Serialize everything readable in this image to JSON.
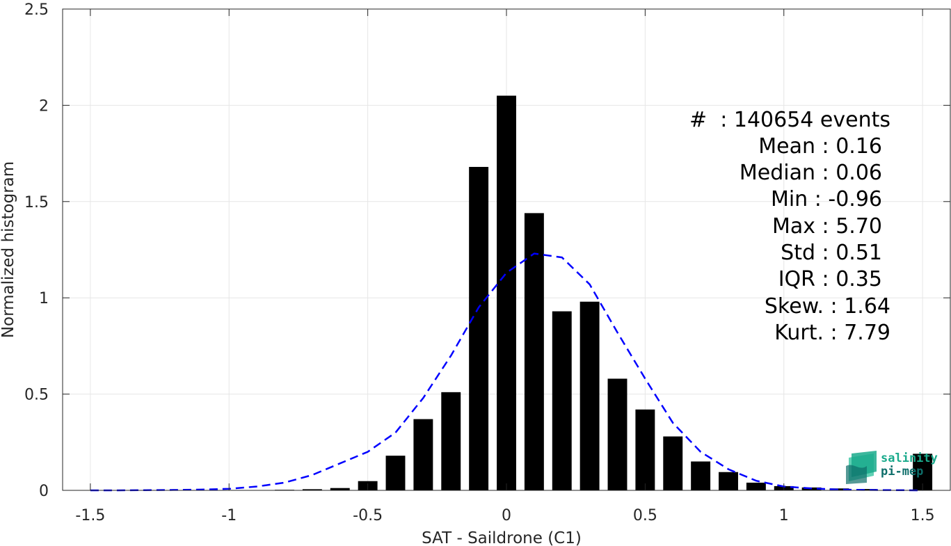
{
  "chart_data": {
    "type": "bar",
    "title": "",
    "xlabel": "SAT - Saildrone (C1)",
    "ylabel": "Normalized histogram",
    "xlim": [
      -1.6,
      1.6
    ],
    "ylim": [
      0,
      2.5
    ],
    "xticks": [
      -1.5,
      -1,
      -0.5,
      0,
      0.5,
      1,
      1.5
    ],
    "xtick_labels": [
      "-1.5",
      "-1",
      "-0.5",
      "0",
      "0.5",
      "1",
      "1.5"
    ],
    "yticks": [
      0,
      0.5,
      1,
      1.5,
      2,
      2.5
    ],
    "ytick_labels": [
      "0",
      "0.5",
      "1",
      "1.5",
      "2",
      "2.5"
    ],
    "grid": true,
    "bar_width": 0.07,
    "bar_color": "#000000",
    "bars": [
      {
        "x": -0.8,
        "value": 0.003
      },
      {
        "x": -0.7,
        "value": 0.006
      },
      {
        "x": -0.6,
        "value": 0.012
      },
      {
        "x": -0.5,
        "value": 0.048
      },
      {
        "x": -0.4,
        "value": 0.18
      },
      {
        "x": -0.3,
        "value": 0.37
      },
      {
        "x": -0.2,
        "value": 0.51
      },
      {
        "x": -0.1,
        "value": 1.68
      },
      {
        "x": 0.0,
        "value": 2.05
      },
      {
        "x": 0.1,
        "value": 1.44
      },
      {
        "x": 0.2,
        "value": 0.93
      },
      {
        "x": 0.3,
        "value": 0.98
      },
      {
        "x": 0.4,
        "value": 0.58
      },
      {
        "x": 0.5,
        "value": 0.42
      },
      {
        "x": 0.6,
        "value": 0.28
      },
      {
        "x": 0.7,
        "value": 0.15
      },
      {
        "x": 0.8,
        "value": 0.095
      },
      {
        "x": 0.9,
        "value": 0.04
      },
      {
        "x": 1.0,
        "value": 0.022
      },
      {
        "x": 1.1,
        "value": 0.015
      },
      {
        "x": 1.2,
        "value": 0.01
      },
      {
        "x": 1.3,
        "value": 0.007
      },
      {
        "x": 1.5,
        "value": 0.19
      }
    ],
    "fit_curve": {
      "color": "#0000ff",
      "style": "dashed",
      "x": [
        -1.5,
        -1.4,
        -1.3,
        -1.2,
        -1.1,
        -1.0,
        -0.9,
        -0.8,
        -0.7,
        -0.6,
        -0.5,
        -0.4,
        -0.3,
        -0.2,
        -0.1,
        0.0,
        0.1,
        0.2,
        0.3,
        0.4,
        0.5,
        0.6,
        0.7,
        0.8,
        0.9,
        1.0,
        1.1,
        1.2,
        1.3,
        1.4,
        1.5
      ],
      "y": [
        0.0,
        0.0,
        0.001,
        0.002,
        0.004,
        0.008,
        0.02,
        0.04,
        0.08,
        0.14,
        0.2,
        0.3,
        0.48,
        0.7,
        0.95,
        1.13,
        1.23,
        1.21,
        1.07,
        0.82,
        0.58,
        0.35,
        0.2,
        0.11,
        0.05,
        0.02,
        0.01,
        0.004,
        0.002,
        0.001,
        0.0
      ]
    }
  },
  "stats": {
    "events": "#  : 140654 events",
    "mean": "Mean : 0.16",
    "median": "Median : 0.06",
    "min": "Min : -0.96",
    "max": "Max : 5.70",
    "std": "Std : 0.51",
    "iqr": "IQR : 0.35",
    "skew": "Skew. : 1.64",
    "kurt": "Kurt. : 7.79"
  },
  "logo": {
    "line1": "salinity",
    "line2": "pi-mep",
    "color1": "#1aaa8c",
    "color2": "#0e6e6a"
  }
}
